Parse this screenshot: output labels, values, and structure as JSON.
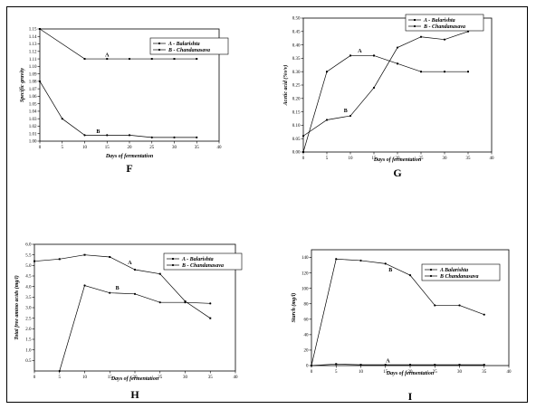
{
  "charts": [
    {
      "id": "F",
      "type": "line",
      "panel_label": "F",
      "xlabel": "Days of fermentation",
      "ylabel": "Specific gravity",
      "xlim": [
        0,
        40
      ],
      "ylim": [
        1.0,
        1.15
      ],
      "xticks": [
        0,
        5,
        10,
        15,
        20,
        25,
        30,
        35,
        40
      ],
      "yticks": [
        1.0,
        1.01,
        1.02,
        1.03,
        1.04,
        1.05,
        1.06,
        1.07,
        1.08,
        1.09,
        1.1,
        1.11,
        1.12,
        1.13,
        1.14,
        1.15
      ],
      "ytick_decimals": 2,
      "legend": [
        "A - Balarishta",
        "B - Chandanasava"
      ],
      "series": [
        {
          "name": "A",
          "x": [
            0,
            10,
            15,
            20,
            25,
            30,
            35
          ],
          "y": [
            1.15,
            1.11,
            1.11,
            1.11,
            1.11,
            1.11,
            1.11
          ],
          "label_at": [
            15,
            1.113
          ]
        },
        {
          "name": "B",
          "x": [
            0,
            5,
            10,
            15,
            20,
            25,
            30,
            35
          ],
          "y": [
            1.08,
            1.03,
            1.008,
            1.008,
            1.008,
            1.005,
            1.005,
            1.005
          ],
          "label_at": [
            13,
            1.011
          ]
        }
      ]
    },
    {
      "id": "G",
      "type": "line",
      "panel_label": "G",
      "xlabel": "Days of fermentation",
      "ylabel": "Acetic acid (%v/v)",
      "xlim": [
        0,
        40
      ],
      "ylim": [
        0,
        0.5
      ],
      "xticks": [
        0,
        5,
        10,
        15,
        20,
        25,
        30,
        35,
        40
      ],
      "yticks": [
        0.0,
        0.05,
        0.1,
        0.15,
        0.2,
        0.25,
        0.3,
        0.35,
        0.4,
        0.45,
        0.5
      ],
      "ytick_decimals": 2,
      "legend": [
        "A - Balarishta",
        "B - Chandanasava"
      ],
      "series": [
        {
          "name": "A",
          "x": [
            0,
            5,
            10,
            15,
            20,
            25,
            30,
            35
          ],
          "y": [
            0.0,
            0.3,
            0.36,
            0.36,
            0.33,
            0.3,
            0.3,
            0.3
          ],
          "label_at": [
            12,
            0.372
          ]
        },
        {
          "name": "B",
          "x": [
            0,
            5,
            10,
            15,
            20,
            25,
            30,
            35
          ],
          "y": [
            0.06,
            0.12,
            0.135,
            0.24,
            0.39,
            0.43,
            0.42,
            0.45
          ],
          "label_at": [
            9,
            0.148
          ]
        }
      ]
    },
    {
      "id": "H",
      "type": "line",
      "panel_label": "H",
      "xlabel": "Days of fermentation",
      "ylabel": "Total free amino acids (mg/l)",
      "xlim": [
        0,
        40
      ],
      "ylim": [
        0,
        6.0
      ],
      "xticks": [
        0,
        5,
        10,
        15,
        20,
        25,
        30,
        35,
        40
      ],
      "yticks": [
        0.5,
        1.0,
        1.5,
        2.0,
        2.5,
        3.0,
        3.5,
        4.0,
        4.5,
        5.0,
        5.5,
        6.0
      ],
      "ytick_decimals": 1,
      "legend": [
        "A - Balarishta",
        "B - Chandanasava"
      ],
      "series": [
        {
          "name": "A",
          "x": [
            0,
            5,
            10,
            15,
            20,
            25,
            30,
            35
          ],
          "y": [
            5.2,
            5.3,
            5.5,
            5.4,
            4.8,
            4.6,
            3.3,
            2.5
          ],
          "label_at": [
            19,
            5.05
          ]
        },
        {
          "name": "B",
          "x": [
            5,
            10,
            15,
            20,
            25,
            30,
            35
          ],
          "y": [
            0.0,
            4.05,
            3.7,
            3.65,
            3.25,
            3.25,
            3.2
          ],
          "label_at": [
            16.5,
            3.85
          ]
        }
      ]
    },
    {
      "id": "I",
      "type": "line",
      "panel_label": "I",
      "xlabel": "Days of fermentation",
      "ylabel": "Starch (mg/l)",
      "xlim": [
        0,
        40
      ],
      "ylim": [
        0,
        150
      ],
      "xticks": [
        0,
        5,
        10,
        15,
        20,
        25,
        30,
        35,
        40
      ],
      "yticks": [
        0,
        20,
        40,
        60,
        80,
        100,
        120,
        140
      ],
      "ytick_decimals": 0,
      "legend": [
        "A Balarishta",
        "B Chandanasava"
      ],
      "series": [
        {
          "name": "A",
          "x": [
            0,
            5,
            10,
            15,
            20,
            25,
            30,
            35
          ],
          "y": [
            0,
            2,
            1,
            1,
            1,
            1,
            1,
            1
          ],
          "label_at": [
            15.5,
            4
          ]
        },
        {
          "name": "B",
          "x": [
            0,
            5,
            10,
            15,
            20,
            25,
            30,
            35
          ],
          "y": [
            0,
            138,
            136,
            132,
            117,
            78,
            78,
            66
          ],
          "label_at": [
            16,
            122
          ]
        }
      ]
    }
  ]
}
